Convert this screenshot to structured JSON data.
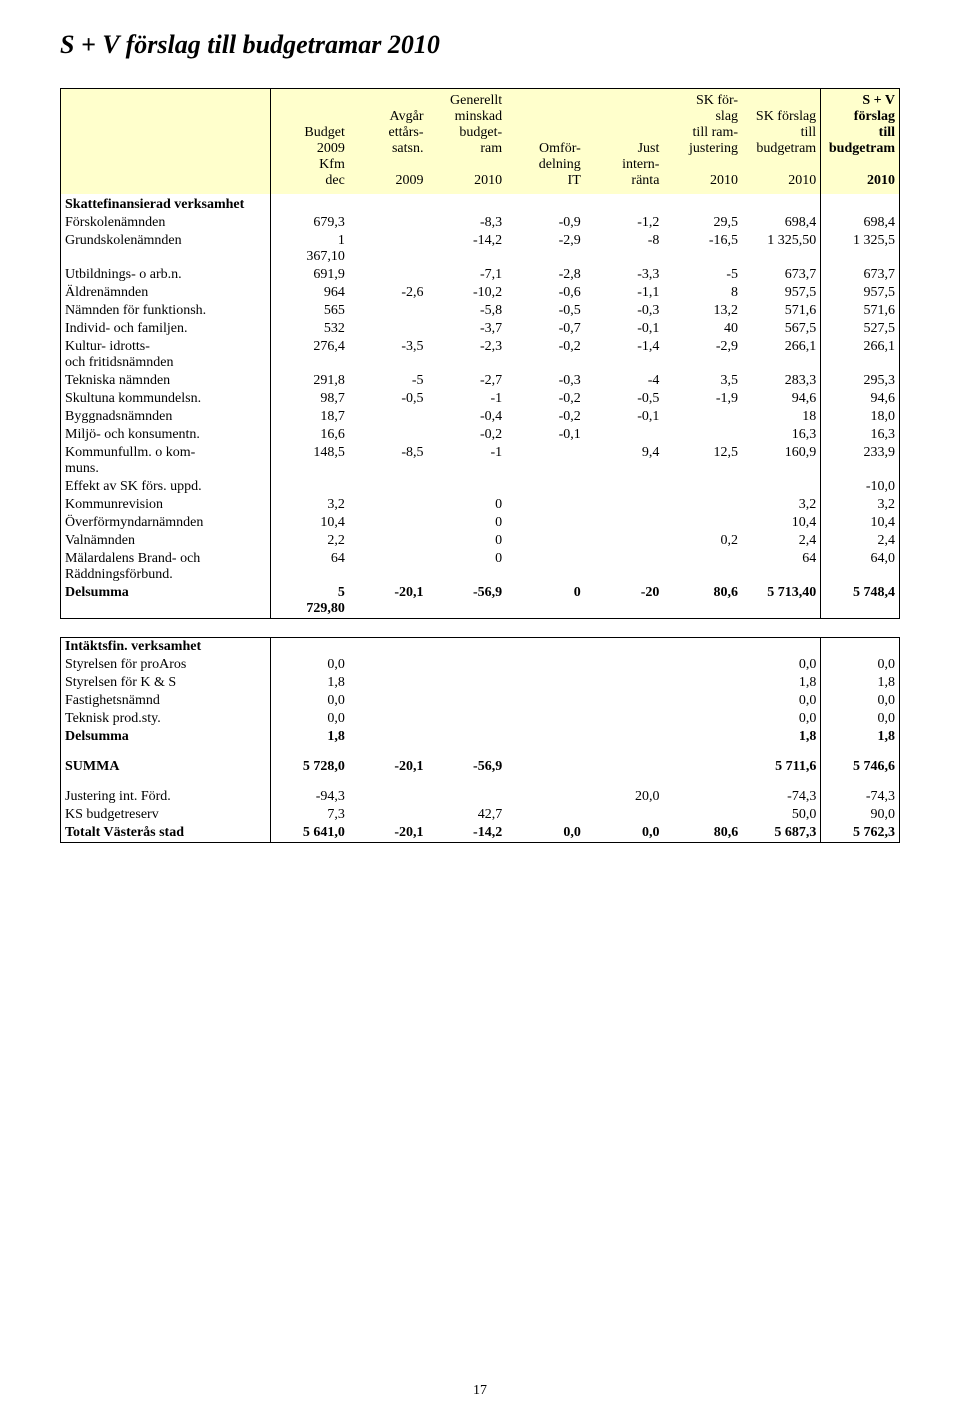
{
  "title": "S + V förslag till budgetramar 2010",
  "page_number": "17",
  "header": {
    "col0": "",
    "cols": [
      "Budget\n2009\nKfm\ndec",
      "Avgår\nettårs-\nsatsn.\n\n2009",
      "Generellt\nminskad\nbudget-\nram\n\n2010",
      "Omför-\ndelning\nIT",
      "Just\nintern-\nränta",
      "SK för-\nslag\ntill ram-\njustering\n\n2010",
      "SK förslag\ntill\nbudgetram\n\n2010",
      "S + V\nförslag\ntill\nbudgetram\n\n2010"
    ]
  },
  "section1_title": "Skattefinansierad verksamhet",
  "rows1": [
    {
      "label": "Förskolenämnden",
      "v": [
        "679,3",
        "",
        "-8,3",
        "-0,9",
        "-1,2",
        "29,5",
        "698,4",
        "698,4"
      ]
    },
    {
      "label": "Grundskolenämnden",
      "pre": "1",
      "v": [
        "367,10",
        "",
        "-14,2",
        "-2,9",
        "-8",
        "-16,5",
        "1 325,50",
        "1 325,5"
      ]
    },
    {
      "label": "Utbildnings- o arb.n.",
      "v": [
        "691,9",
        "",
        "-7,1",
        "-2,8",
        "-3,3",
        "-5",
        "673,7",
        "673,7"
      ]
    },
    {
      "label": "Äldrenämnden",
      "v": [
        "964",
        "-2,6",
        "-10,2",
        "-0,6",
        "-1,1",
        "8",
        "957,5",
        "957,5"
      ]
    },
    {
      "label": "Nämnden för funktionsh.",
      "v": [
        "565",
        "",
        "-5,8",
        "-0,5",
        "-0,3",
        "13,2",
        "571,6",
        "571,6"
      ]
    },
    {
      "label": "Individ- och familjen.",
      "v": [
        "532",
        "",
        "-3,7",
        "-0,7",
        "-0,1",
        "40",
        "567,5",
        "527,5"
      ]
    },
    {
      "label": "Kultur- idrotts-\noch fritidsnämnden",
      "v": [
        "276,4",
        "-3,5",
        "-2,3",
        "-0,2",
        "-1,4",
        "-2,9",
        "266,1",
        "266,1"
      ]
    },
    {
      "label": "Tekniska nämnden",
      "v": [
        "291,8",
        "-5",
        "-2,7",
        "-0,3",
        "-4",
        "3,5",
        "283,3",
        "295,3"
      ]
    },
    {
      "label": "Skultuna kommundelsn.",
      "v": [
        "98,7",
        "-0,5",
        "-1",
        "-0,2",
        "-0,5",
        "-1,9",
        "94,6",
        "94,6"
      ]
    },
    {
      "label": "Byggnadsnämnden",
      "v": [
        "18,7",
        "",
        "-0,4",
        "-0,2",
        "-0,1",
        "",
        "18",
        "18,0"
      ]
    },
    {
      "label": "Miljö- och konsumentn.",
      "v": [
        "16,6",
        "",
        "-0,2",
        "-0,1",
        "",
        "",
        "16,3",
        "16,3"
      ]
    },
    {
      "label": "Kommunfullm. o kom-\nmuns.",
      "v": [
        "148,5",
        "-8,5",
        "-1",
        "",
        "9,4",
        "12,5",
        "160,9",
        "233,9"
      ]
    },
    {
      "label": "Effekt av SK förs. uppd.",
      "v": [
        "",
        "",
        "",
        "",
        "",
        "",
        "",
        "-10,0"
      ]
    },
    {
      "label": "Kommunrevision",
      "v": [
        "3,2",
        "",
        "0",
        "",
        "",
        "",
        "3,2",
        "3,2"
      ]
    },
    {
      "label": "Överförmyndarnämnden",
      "v": [
        "10,4",
        "",
        "0",
        "",
        "",
        "",
        "10,4",
        "10,4"
      ]
    },
    {
      "label": "Valnämnden",
      "v": [
        "2,2",
        "",
        "0",
        "",
        "",
        "0,2",
        "2,4",
        "2,4"
      ]
    },
    {
      "label": "Mälardalens Brand- och\nRäddningsförbund.",
      "v": [
        "64",
        "",
        "0",
        "",
        "",
        "",
        "64",
        "64,0"
      ]
    }
  ],
  "delsumma1": {
    "label": "Delsumma",
    "pre": "5",
    "v": [
      "729,80",
      "-20,1",
      "-56,9",
      "0",
      "-20",
      "80,6",
      "5 713,40",
      "5 748,4"
    ]
  },
  "section2_title": "Intäktsfin. verksamhet",
  "rows2": [
    {
      "label": "Styrelsen för proAros",
      "v": [
        "0,0",
        "",
        "",
        "",
        "",
        "",
        "0,0",
        "0,0"
      ]
    },
    {
      "label": "Styrelsen för K & S",
      "v": [
        "1,8",
        "",
        "",
        "",
        "",
        "",
        "1,8",
        "1,8"
      ]
    },
    {
      "label": "Fastighetsnämnd",
      "v": [
        "0,0",
        "",
        "",
        "",
        "",
        "",
        "0,0",
        "0,0"
      ]
    },
    {
      "label": "Teknisk prod.sty.",
      "v": [
        "0,0",
        "",
        "",
        "",
        "",
        "",
        "0,0",
        "0,0"
      ]
    }
  ],
  "delsumma2": {
    "label": "Delsumma",
    "v": [
      "1,8",
      "",
      "",
      "",
      "",
      "",
      "1,8",
      "1,8"
    ]
  },
  "summa": {
    "label": "SUMMA",
    "v": [
      "5 728,0",
      "-20,1",
      "-56,9",
      "",
      "",
      "",
      "5 711,6",
      "5 746,6"
    ]
  },
  "rows3": [
    {
      "label": "Justering int. Förd.",
      "v": [
        "-94,3",
        "",
        "",
        "",
        "20,0",
        "",
        "-74,3",
        "-74,3"
      ]
    },
    {
      "label": "KS budgetreserv",
      "v": [
        "7,3",
        "",
        "42,7",
        "",
        "",
        "",
        "50,0",
        "90,0"
      ]
    }
  ],
  "total": {
    "label": "Totalt Västerås stad",
    "v": [
      "5 641,0",
      "-20,1",
      "-14,2",
      "0,0",
      "0,0",
      "80,6",
      "5 687,3",
      "5 762,3"
    ]
  }
}
